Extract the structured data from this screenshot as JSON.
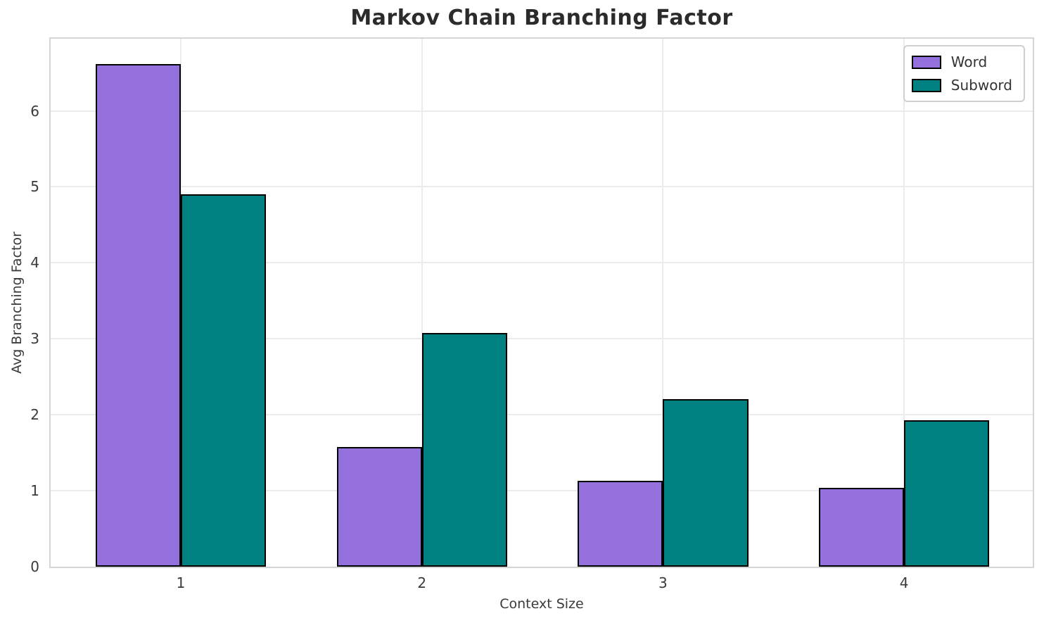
{
  "chart_data": {
    "type": "bar",
    "title": "Markov Chain Branching Factor",
    "xlabel": "Context Size",
    "ylabel": "Avg Branching Factor",
    "categories": [
      "1",
      "2",
      "3",
      "4"
    ],
    "series": [
      {
        "name": "Word",
        "color": "#9370DB",
        "values": [
          6.62,
          1.58,
          1.13,
          1.04
        ]
      },
      {
        "name": "Subword",
        "color": "#008080",
        "values": [
          4.9,
          3.08,
          2.21,
          1.93
        ]
      }
    ],
    "ylim": [
      0,
      6.95
    ],
    "yticks": [
      0,
      1,
      2,
      3,
      4,
      5,
      6
    ],
    "grid": true,
    "legend_position": "upper right",
    "bar_edge_color": "#000000",
    "grid_color": "#ebebeb",
    "spine_color": "#d5d5d5",
    "text_color": "#3a3a3a",
    "title_color": "#2b2b2b"
  }
}
